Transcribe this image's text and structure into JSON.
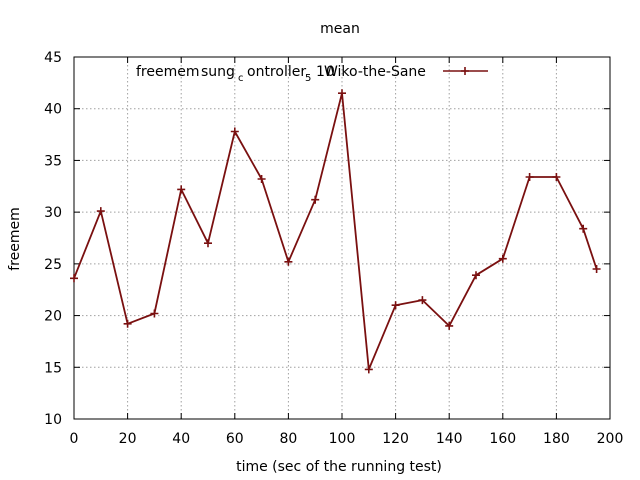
{
  "chart_data": {
    "type": "line",
    "title": "mean",
    "xlabel": "time (sec of the running test)",
    "ylabel": "freemem",
    "xlim": [
      0,
      200
    ],
    "ylim": [
      10,
      45
    ],
    "xticks": [
      "0",
      "20",
      "40",
      "60",
      "80",
      "100",
      "120",
      "140",
      "160",
      "180",
      "200"
    ],
    "yticks": [
      "10",
      "15",
      "20",
      "25",
      "30",
      "35",
      "40",
      "45"
    ],
    "grid": true,
    "legend_position": "top-right",
    "legend": {
      "part1": "freemem",
      "part2": "sung",
      "sub1": "c",
      "part3": "ontroller",
      "sub2": "5",
      "part4": "1",
      "part5": "Wiko-the-Sane",
      "overlap": "0"
    },
    "series": [
      {
        "name": "freemem sung_controller_5 10 Wiko-the-Sane",
        "color": "#7a1010",
        "x": [
          0,
          10,
          20,
          30,
          40,
          50,
          60,
          70,
          80,
          90,
          100,
          110,
          120,
          130,
          140,
          150,
          160,
          170,
          180,
          190,
          195
        ],
        "y": [
          23.6,
          30.1,
          19.2,
          20.2,
          32.2,
          27.0,
          37.8,
          33.2,
          25.2,
          31.2,
          41.5,
          14.8,
          21.0,
          21.5,
          19.0,
          23.9,
          25.5,
          33.4,
          33.4,
          28.4,
          24.5
        ]
      }
    ]
  }
}
